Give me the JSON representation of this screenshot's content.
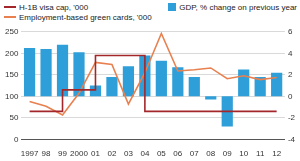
{
  "chart_data": {
    "type": "bar",
    "categories": [
      "1997",
      "98",
      "99",
      "2000",
      "01",
      "02",
      "03",
      "04",
      "05",
      "06",
      "07",
      "08",
      "09",
      "10",
      "11",
      "12"
    ],
    "series": [
      {
        "name": "H-1B visa cap, '000",
        "type": "line",
        "line_style": "stepped",
        "color": "#a3272a",
        "values": [
          65,
          65,
          115,
          115,
          195,
          195,
          195,
          65,
          65,
          65,
          65,
          65,
          65,
          65,
          65,
          65
        ]
      },
      {
        "name": "Employment-based green cards, '000",
        "type": "line",
        "line_style": "solid",
        "color": "#e8804f",
        "values": [
          88,
          77,
          57,
          107,
          179,
          174,
          82,
          155,
          246,
          159,
          162,
          166,
          141,
          148,
          139,
          144
        ]
      },
      {
        "name": "GDP, % change on previous year",
        "type": "bar",
        "axis": "y2",
        "color": "#2e9fd8",
        "values": [
          4.5,
          4.4,
          4.8,
          4.1,
          1.0,
          1.8,
          2.8,
          3.8,
          3.3,
          2.7,
          1.8,
          -0.3,
          -2.8,
          2.5,
          1.8,
          2.2
        ]
      }
    ],
    "ylim": [
      0,
      250
    ],
    "yticks": [
      0,
      50,
      100,
      150,
      200,
      250
    ],
    "y2lim": [
      -4,
      6
    ],
    "y2ticks": [
      -4,
      -2,
      0,
      2,
      4,
      6
    ],
    "grid": true
  }
}
